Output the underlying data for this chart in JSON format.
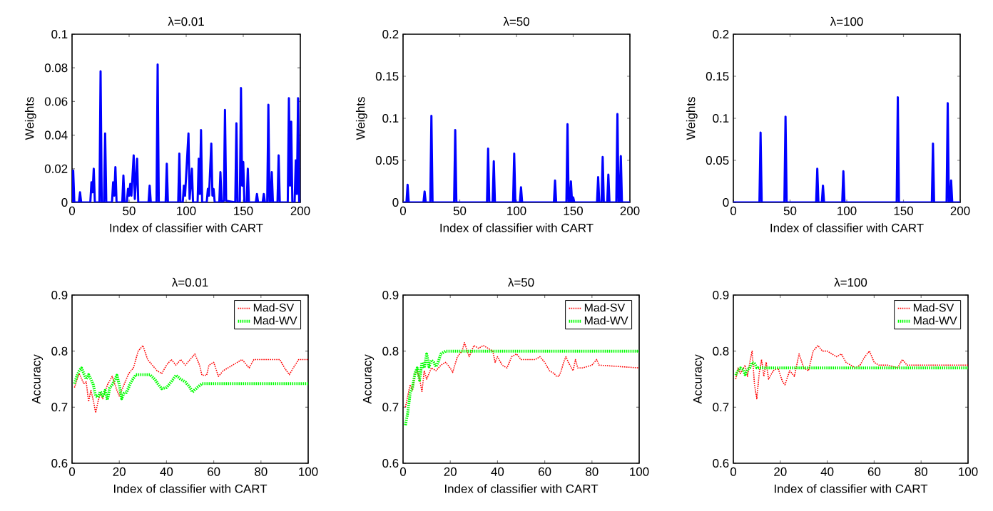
{
  "chart_data": [
    {
      "type": "line",
      "title": "λ=0.01",
      "xlabel": "Index of classifier with CART",
      "ylabel": "Weights",
      "xlim": [
        0,
        200
      ],
      "ylim": [
        0,
        0.1
      ],
      "xticks": [
        0,
        50,
        100,
        150,
        200
      ],
      "yticks": [
        0,
        0.02,
        0.04,
        0.06,
        0.08,
        0.1
      ],
      "line_style": "solid",
      "series": [
        {
          "color": "#0000ff",
          "x": [
            0,
            1,
            2,
            6,
            7,
            8,
            16,
            17,
            18,
            19,
            20,
            24,
            25,
            26,
            28,
            29,
            30,
            35,
            36,
            37,
            38,
            39,
            44,
            45,
            46,
            48,
            49,
            50,
            51,
            52,
            54,
            55,
            57,
            58,
            67,
            68,
            69,
            74,
            75,
            76,
            82,
            83,
            84,
            93,
            94,
            95,
            97,
            98,
            99,
            102,
            103,
            105,
            106,
            110,
            111,
            112,
            113,
            114,
            118,
            119,
            120,
            122,
            123,
            124,
            125,
            129,
            130,
            131,
            133,
            134,
            135,
            143,
            144,
            145,
            147,
            148,
            149,
            150,
            151,
            153,
            154,
            155,
            161,
            162,
            163,
            167,
            168,
            169,
            171,
            172,
            173,
            174,
            175,
            176,
            180,
            181,
            182,
            189,
            190,
            191,
            192,
            193,
            195,
            196,
            197,
            198,
            199,
            200
          ],
          "values": [
            0,
            0.019,
            0,
            0,
            0.006,
            0,
            0,
            0.012,
            0.006,
            0.02,
            0,
            0,
            0.078,
            0,
            0,
            0.041,
            0,
            0,
            0.012,
            0.004,
            0.021,
            0,
            0,
            0.016,
            0,
            0,
            0.008,
            0.004,
            0.011,
            0.004,
            0.028,
            0.002,
            0.026,
            0,
            0,
            0.01,
            0,
            0,
            0.082,
            0,
            0,
            0.023,
            0,
            0,
            0.029,
            0,
            0,
            0.01,
            0.004,
            0.041,
            0.002,
            0.02,
            0,
            0,
            0.026,
            0.005,
            0.043,
            0,
            0,
            0.008,
            0.004,
            0.035,
            0.004,
            0.008,
            0,
            0,
            0.018,
            0,
            0.001,
            0.055,
            0.001,
            0,
            0.047,
            0,
            0,
            0.068,
            0.01,
            0.024,
            0,
            0,
            0.02,
            0,
            0,
            0.005,
            0,
            0,
            0.005,
            0,
            0,
            0.058,
            0,
            0,
            0.018,
            0,
            0,
            0.028,
            0,
            0,
            0.062,
            0.01,
            0.048,
            0,
            0,
            0.025,
            0.005,
            0.062,
            0,
            0
          ]
        }
      ]
    },
    {
      "type": "line",
      "title": "λ=50",
      "xlabel": "Index of classifier with CART",
      "ylabel": "Weights",
      "xlim": [
        0,
        200
      ],
      "ylim": [
        0,
        0.2
      ],
      "xticks": [
        0,
        50,
        100,
        150,
        200
      ],
      "yticks": [
        0,
        0.05,
        0.1,
        0.15,
        0.2
      ],
      "line_style": "solid",
      "series": [
        {
          "color": "#0000ff",
          "x": [
            0,
            3,
            4,
            5,
            18,
            19,
            20,
            24,
            25,
            26,
            45,
            46,
            47,
            74,
            75,
            76,
            79,
            80,
            81,
            97,
            98,
            99,
            103,
            104,
            105,
            133,
            134,
            135,
            144,
            145,
            146,
            147,
            148,
            149,
            150,
            151,
            171,
            172,
            173,
            175,
            176,
            177,
            180,
            181,
            182,
            188,
            189,
            190,
            191,
            192,
            193,
            200
          ],
          "values": [
            0,
            0,
            0.021,
            0,
            0,
            0.013,
            0,
            0,
            0.103,
            0,
            0,
            0.086,
            0,
            0,
            0.064,
            0,
            0,
            0.049,
            0,
            0,
            0.058,
            0,
            0,
            0.018,
            0,
            0,
            0.026,
            0,
            0,
            0.093,
            0,
            0,
            0.025,
            0,
            0.006,
            0,
            0,
            0.03,
            0,
            0,
            0.054,
            0,
            0,
            0.033,
            0,
            0,
            0.105,
            0,
            0,
            0.055,
            0,
            0
          ]
        }
      ]
    },
    {
      "type": "line",
      "title": "λ=100",
      "xlabel": "Index of classifier with CART",
      "ylabel": "Weights",
      "xlim": [
        0,
        200
      ],
      "ylim": [
        0,
        0.2
      ],
      "xticks": [
        0,
        50,
        100,
        150,
        200
      ],
      "yticks": [
        0,
        0.05,
        0.1,
        0.15,
        0.2
      ],
      "line_style": "solid",
      "series": [
        {
          "color": "#0000ff",
          "x": [
            0,
            23,
            24,
            25,
            45,
            46,
            47,
            73,
            74,
            75,
            78,
            79,
            80,
            96,
            97,
            98,
            144,
            145,
            146,
            175,
            176,
            177,
            188,
            189,
            190,
            191,
            192,
            193,
            200
          ],
          "values": [
            0,
            0,
            0.083,
            0,
            0,
            0.102,
            0,
            0,
            0.04,
            0,
            0,
            0.02,
            0,
            0,
            0.037,
            0,
            0,
            0.125,
            0,
            0,
            0.07,
            0,
            0,
            0.118,
            0,
            0,
            0.026,
            0,
            0
          ]
        }
      ]
    },
    {
      "type": "line",
      "title": "λ=0.01",
      "xlabel": "Index of classifier with CART",
      "ylabel": "Accuracy",
      "xlim": [
        0,
        100
      ],
      "ylim": [
        0.6,
        0.9
      ],
      "xticks": [
        0,
        20,
        40,
        60,
        80,
        100
      ],
      "yticks": [
        0.6,
        0.7,
        0.8,
        0.9
      ],
      "legend": "top right",
      "line_style": "dotted",
      "series": [
        {
          "name": "Mad-SV",
          "color": "#ff0000",
          "x": [
            1,
            3,
            5,
            6,
            7,
            8,
            9,
            10,
            11,
            12,
            13,
            15,
            17,
            19,
            20,
            22,
            24,
            26,
            28,
            30,
            32,
            34,
            36,
            38,
            40,
            42,
            44,
            46,
            48,
            50,
            52,
            54,
            55,
            57,
            58,
            60,
            62,
            64,
            66,
            68,
            70,
            72,
            75,
            77,
            88,
            90,
            92,
            94,
            96,
            100
          ],
          "values": [
            0.735,
            0.76,
            0.742,
            0.745,
            0.71,
            0.73,
            0.712,
            0.69,
            0.71,
            0.725,
            0.715,
            0.74,
            0.755,
            0.73,
            0.72,
            0.74,
            0.76,
            0.77,
            0.8,
            0.81,
            0.785,
            0.775,
            0.765,
            0.76,
            0.775,
            0.785,
            0.775,
            0.785,
            0.775,
            0.785,
            0.795,
            0.775,
            0.757,
            0.757,
            0.775,
            0.78,
            0.755,
            0.765,
            0.77,
            0.775,
            0.78,
            0.785,
            0.77,
            0.785,
            0.785,
            0.77,
            0.758,
            0.772,
            0.785,
            0.785
          ]
        },
        {
          "name": "Mad-WV",
          "color": "#00ff00",
          "x": [
            1,
            2,
            3,
            4,
            5,
            6,
            7,
            8,
            9,
            10,
            11,
            12,
            13,
            14,
            15,
            16,
            17,
            18,
            19,
            20,
            21,
            22,
            23,
            25,
            27,
            30,
            33,
            35,
            37,
            38,
            40,
            42,
            44,
            46,
            48,
            50,
            51,
            53,
            55,
            100
          ],
          "values": [
            0.742,
            0.755,
            0.765,
            0.77,
            0.76,
            0.75,
            0.758,
            0.75,
            0.74,
            0.72,
            0.718,
            0.728,
            0.72,
            0.73,
            0.713,
            0.735,
            0.74,
            0.748,
            0.757,
            0.74,
            0.715,
            0.725,
            0.726,
            0.745,
            0.758,
            0.758,
            0.758,
            0.75,
            0.738,
            0.733,
            0.735,
            0.745,
            0.757,
            0.75,
            0.745,
            0.735,
            0.727,
            0.735,
            0.742,
            0.742
          ]
        }
      ]
    },
    {
      "type": "line",
      "title": "λ=50",
      "xlabel": "Index of classifier with CART",
      "ylabel": "Accuracy",
      "xlim": [
        0,
        100
      ],
      "ylim": [
        0.6,
        0.9
      ],
      "xticks": [
        0,
        20,
        40,
        60,
        80,
        100
      ],
      "yticks": [
        0.6,
        0.7,
        0.8,
        0.9
      ],
      "legend": "top right",
      "line_style": "dotted",
      "series": [
        {
          "name": "Mad-SV",
          "color": "#ff0000",
          "x": [
            1,
            2,
            3,
            4,
            5,
            6,
            7,
            8,
            9,
            10,
            12,
            14,
            16,
            18,
            20,
            21,
            23,
            25,
            26,
            28,
            30,
            32,
            34,
            36,
            38,
            39,
            40,
            42,
            44,
            46,
            48,
            50,
            52,
            56,
            58,
            60,
            62,
            64,
            65,
            66,
            67,
            68,
            69,
            70,
            72,
            73,
            74,
            76,
            80,
            82,
            83,
            100
          ],
          "values": [
            0.7,
            0.72,
            0.74,
            0.73,
            0.76,
            0.765,
            0.75,
            0.728,
            0.765,
            0.75,
            0.77,
            0.765,
            0.775,
            0.78,
            0.77,
            0.762,
            0.79,
            0.8,
            0.815,
            0.79,
            0.81,
            0.805,
            0.81,
            0.805,
            0.8,
            0.78,
            0.79,
            0.775,
            0.77,
            0.79,
            0.795,
            0.785,
            0.785,
            0.785,
            0.79,
            0.78,
            0.765,
            0.76,
            0.755,
            0.755,
            0.765,
            0.78,
            0.79,
            0.78,
            0.765,
            0.785,
            0.77,
            0.77,
            0.775,
            0.785,
            0.775,
            0.77
          ]
        },
        {
          "name": "Mad-WV",
          "color": "#00ff00",
          "x": [
            1,
            2,
            3,
            4,
            5,
            6,
            7,
            8,
            9,
            10,
            11,
            12,
            13,
            14,
            15,
            16,
            18,
            100
          ],
          "values": [
            0.668,
            0.69,
            0.725,
            0.735,
            0.76,
            0.77,
            0.748,
            0.78,
            0.77,
            0.795,
            0.772,
            0.784,
            0.78,
            0.772,
            0.782,
            0.795,
            0.8,
            0.8
          ]
        }
      ]
    },
    {
      "type": "line",
      "title": "λ=100",
      "xlabel": "Index of classifier with CART",
      "ylabel": "Accuracy",
      "xlim": [
        0,
        100
      ],
      "ylim": [
        0.6,
        0.9
      ],
      "xticks": [
        0,
        20,
        40,
        60,
        80,
        100
      ],
      "yticks": [
        0.6,
        0.7,
        0.8,
        0.9
      ],
      "legend": "top right",
      "line_style": "dotted",
      "series": [
        {
          "name": "Mad-SV",
          "color": "#ff0000",
          "x": [
            1,
            2,
            3,
            5,
            6,
            7,
            8,
            9,
            10,
            11,
            12,
            13,
            14,
            15,
            17,
            19,
            21,
            22,
            24,
            26,
            28,
            30,
            32,
            34,
            36,
            38,
            40,
            42,
            44,
            46,
            48,
            50,
            52,
            54,
            56,
            58,
            60,
            62,
            66,
            70,
            72,
            74,
            100
          ],
          "values": [
            0.75,
            0.77,
            0.76,
            0.775,
            0.755,
            0.78,
            0.8,
            0.74,
            0.715,
            0.76,
            0.785,
            0.755,
            0.78,
            0.75,
            0.765,
            0.77,
            0.745,
            0.74,
            0.765,
            0.755,
            0.795,
            0.77,
            0.765,
            0.8,
            0.81,
            0.8,
            0.8,
            0.795,
            0.79,
            0.795,
            0.78,
            0.775,
            0.77,
            0.775,
            0.79,
            0.8,
            0.78,
            0.775,
            0.775,
            0.77,
            0.785,
            0.775,
            0.775
          ]
        },
        {
          "name": "Mad-WV",
          "color": "#00ff00",
          "x": [
            1,
            2,
            3,
            4,
            5,
            6,
            7,
            8,
            9,
            10,
            100
          ],
          "values": [
            0.757,
            0.765,
            0.77,
            0.768,
            0.758,
            0.767,
            0.77,
            0.78,
            0.778,
            0.77,
            0.77
          ]
        }
      ]
    }
  ]
}
